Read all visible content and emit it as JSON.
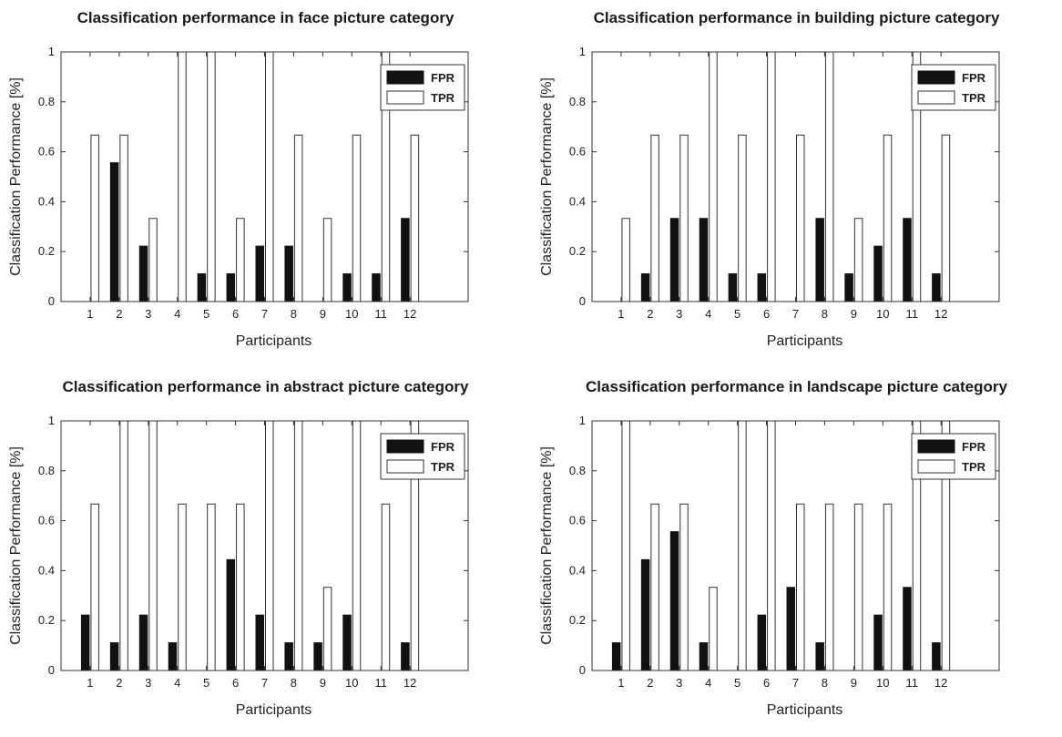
{
  "colors": {
    "fpr": "#111111",
    "tpr": "#ffffff",
    "axis": "#333333"
  },
  "chart_data": [
    {
      "type": "bar",
      "title": "Classification performance in face picture category",
      "xlabel": "Participants",
      "ylabel": "Classification Performance [%]",
      "ylim": [
        0,
        1
      ],
      "xlim": [
        0,
        14
      ],
      "yticks": [
        "0",
        "0.2",
        "0.4",
        "0.6",
        "0.8",
        "1"
      ],
      "categories": [
        "1",
        "2",
        "3",
        "4",
        "5",
        "6",
        "7",
        "8",
        "9",
        "10",
        "11",
        "12"
      ],
      "legend": [
        "FPR",
        "TPR"
      ],
      "legend_position": "top-right",
      "series": [
        {
          "name": "FPR",
          "values": [
            0,
            0.556,
            0.222,
            0,
            0.111,
            0.111,
            0.222,
            0.222,
            0,
            0.111,
            0.111,
            0.333
          ]
        },
        {
          "name": "TPR",
          "values": [
            0.667,
            0.667,
            0.333,
            1,
            1,
            0.333,
            1,
            0.667,
            0.333,
            0.667,
            1,
            0.667
          ]
        }
      ]
    },
    {
      "type": "bar",
      "title": "Classification performance in building picture category",
      "xlabel": "Participants",
      "ylabel": "Classification Performance [%]",
      "ylim": [
        0,
        1
      ],
      "xlim": [
        0,
        14
      ],
      "yticks": [
        "0",
        "0.2",
        "0.4",
        "0.6",
        "0.8",
        "1"
      ],
      "categories": [
        "1",
        "2",
        "3",
        "4",
        "5",
        "6",
        "7",
        "8",
        "9",
        "10",
        "11",
        "12"
      ],
      "legend": [
        "FPR",
        "TPR"
      ],
      "legend_position": "top-right",
      "series": [
        {
          "name": "FPR",
          "values": [
            0,
            0.111,
            0.333,
            0.333,
            0.111,
            0.111,
            0,
            0.333,
            0.111,
            0.222,
            0.333,
            0.111
          ]
        },
        {
          "name": "TPR",
          "values": [
            0.333,
            0.667,
            0.667,
            1,
            0.667,
            1,
            0.667,
            1,
            0.333,
            0.667,
            1,
            0.667
          ]
        }
      ]
    },
    {
      "type": "bar",
      "title": "Classification performance in abstract picture category",
      "xlabel": "Participants",
      "ylabel": "Classification Performance [%]",
      "ylim": [
        0,
        1
      ],
      "xlim": [
        0,
        14
      ],
      "yticks": [
        "0",
        "0.2",
        "0.4",
        "0.6",
        "0.8",
        "1"
      ],
      "categories": [
        "1",
        "2",
        "3",
        "4",
        "5",
        "6",
        "7",
        "8",
        "9",
        "10",
        "11",
        "12"
      ],
      "legend": [
        "FPR",
        "TPR"
      ],
      "legend_position": "top-right",
      "series": [
        {
          "name": "FPR",
          "values": [
            0.222,
            0.111,
            0.222,
            0.111,
            0,
            0.444,
            0.222,
            0.111,
            0.111,
            0.222,
            0,
            0.111
          ]
        },
        {
          "name": "TPR",
          "values": [
            0.667,
            1,
            1,
            0.667,
            0.667,
            0.667,
            1,
            1,
            0.333,
            1,
            0.667,
            1
          ]
        }
      ]
    },
    {
      "type": "bar",
      "title": "Classification performance in landscape picture category",
      "xlabel": "Participants",
      "ylabel": "Classification Performance [%]",
      "ylim": [
        0,
        1
      ],
      "xlim": [
        0,
        14
      ],
      "yticks": [
        "0",
        "0.2",
        "0.4",
        "0.6",
        "0.8",
        "1"
      ],
      "categories": [
        "1",
        "2",
        "3",
        "4",
        "5",
        "6",
        "7",
        "8",
        "9",
        "10",
        "11",
        "12"
      ],
      "legend": [
        "FPR",
        "TPR"
      ],
      "legend_position": "top-right",
      "series": [
        {
          "name": "FPR",
          "values": [
            0.111,
            0.444,
            0.556,
            0.111,
            0,
            0.222,
            0.333,
            0.111,
            0,
            0.222,
            0.333,
            0.111
          ]
        },
        {
          "name": "TPR",
          "values": [
            1,
            0.667,
            0.667,
            0.333,
            1,
            1,
            0.667,
            0.667,
            0.667,
            0.667,
            1,
            1
          ]
        }
      ]
    }
  ]
}
